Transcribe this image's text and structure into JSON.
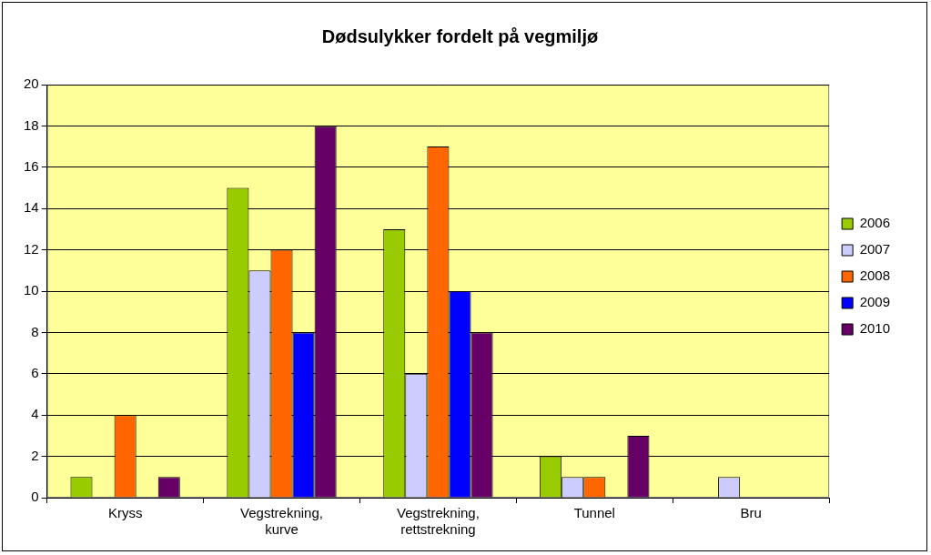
{
  "chart_data": {
    "type": "bar",
    "title": "Dødsulykker fordelt på vegmiljø",
    "categories": [
      "Kryss",
      "Vegstrekning, kurve",
      "Vegstrekning, rettstrekning",
      "Tunnel",
      "Bru"
    ],
    "series": [
      {
        "name": "2006",
        "color": "#99cc00",
        "values": [
          1,
          15,
          13,
          2,
          0
        ]
      },
      {
        "name": "2007",
        "color": "#ccccff",
        "values": [
          0,
          11,
          6,
          1,
          1
        ]
      },
      {
        "name": "2008",
        "color": "#ff6600",
        "values": [
          4,
          12,
          17,
          1,
          0
        ]
      },
      {
        "name": "2009",
        "color": "#0000ff",
        "values": [
          0,
          8,
          10,
          0,
          0
        ]
      },
      {
        "name": "2010",
        "color": "#660066",
        "values": [
          1,
          18,
          8,
          3,
          0
        ]
      }
    ],
    "ylim": [
      0,
      20
    ],
    "yticks": [
      0,
      2,
      4,
      6,
      8,
      10,
      12,
      14,
      16,
      18,
      20
    ],
    "grid": true,
    "legend": "right"
  }
}
